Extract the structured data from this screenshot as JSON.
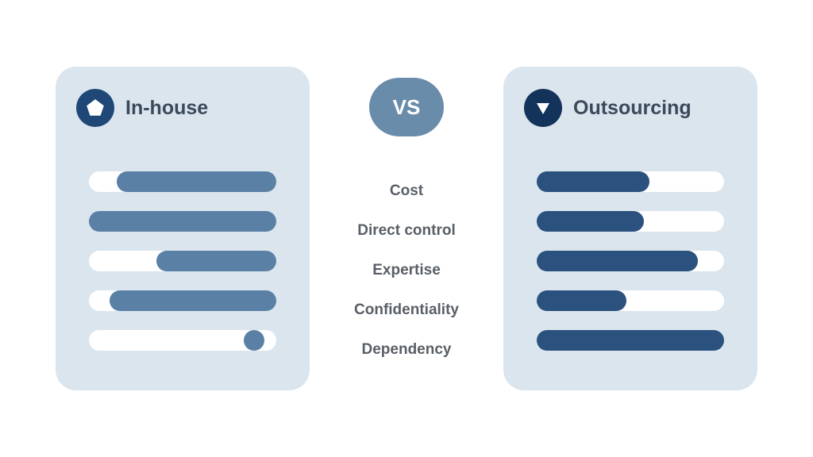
{
  "vs_badge": {
    "text": "VS",
    "bg": "#6a8cab",
    "fg": "#ffffff"
  },
  "panel_bg": "#dbe5ee",
  "track_bg": "#ffffff",
  "label_color": "#585f66",
  "title_color": "#3a4a5a",
  "inhouse": {
    "title": "In-house",
    "icon_bg": "#1f4877",
    "icon_fg": "#ffffff",
    "fill_color": "#5a80a5",
    "bars": [
      {
        "type": "fill",
        "from_pct": 15,
        "width_pct": 85
      },
      {
        "type": "fill",
        "from_pct": 0,
        "width_pct": 100
      },
      {
        "type": "fill",
        "from_pct": 36,
        "width_pct": 64
      },
      {
        "type": "fill",
        "from_pct": 11,
        "width_pct": 89
      },
      {
        "type": "dot",
        "pos_pct": 88
      }
    ]
  },
  "outsourcing": {
    "title": "Outsourcing",
    "icon_bg": "#14335a",
    "icon_fg": "#ffffff",
    "fill_color": "#2b527e",
    "bars": [
      {
        "type": "fill",
        "from_pct": 0,
        "width_pct": 60
      },
      {
        "type": "fill",
        "from_pct": 0,
        "width_pct": 57
      },
      {
        "type": "fill",
        "from_pct": 0,
        "width_pct": 86
      },
      {
        "type": "fill",
        "from_pct": 0,
        "width_pct": 48
      },
      {
        "type": "fill",
        "from_pct": 0,
        "width_pct": 100
      }
    ]
  },
  "categories": [
    "Cost",
    "Direct control",
    "Expertise",
    "Confidentiality",
    "Dependency"
  ]
}
